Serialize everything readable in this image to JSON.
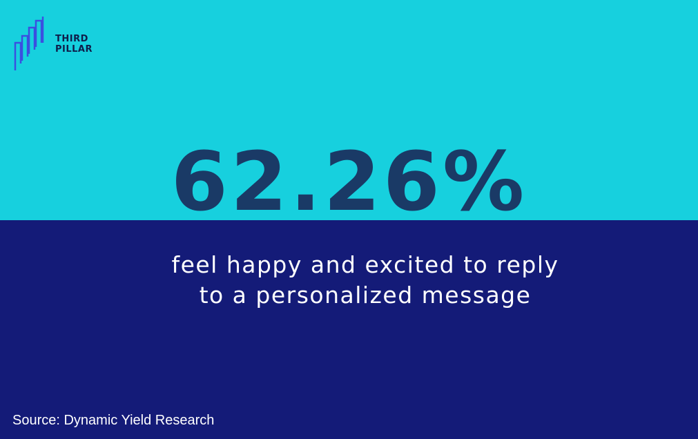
{
  "logo": {
    "line1": "THIRD",
    "line2": "PILLAR"
  },
  "stat": {
    "value": "62.26%",
    "caption_line1": "feel happy and excited to reply",
    "caption_line2": "to a personalized message"
  },
  "source": "Source: Dynamic Yield Research"
}
